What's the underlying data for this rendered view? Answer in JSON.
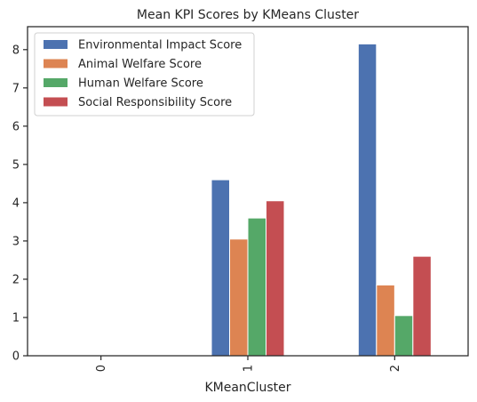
{
  "chart_data": {
    "type": "bar",
    "title": "Mean KPI Scores by KMeans Cluster",
    "xlabel": "KMeanCluster",
    "ylabel": "",
    "categories": [
      "0",
      "1",
      "2"
    ],
    "ylim": [
      0,
      8.6
    ],
    "yticks": [
      0,
      1,
      2,
      3,
      4,
      5,
      6,
      7,
      8
    ],
    "grid": false,
    "legend_position": "top-left",
    "series": [
      {
        "name": "Environmental Impact Score",
        "color": "#4c72b0",
        "values": [
          0,
          4.6,
          8.15
        ]
      },
      {
        "name": "Animal Welfare Score",
        "color": "#dd8452",
        "values": [
          0,
          3.05,
          1.85
        ]
      },
      {
        "name": "Human Welfare Score",
        "color": "#55a868",
        "values": [
          0,
          3.6,
          1.05
        ]
      },
      {
        "name": "Social Responsibility Score",
        "color": "#c44e52",
        "values": [
          0,
          4.05,
          2.6
        ]
      }
    ]
  }
}
